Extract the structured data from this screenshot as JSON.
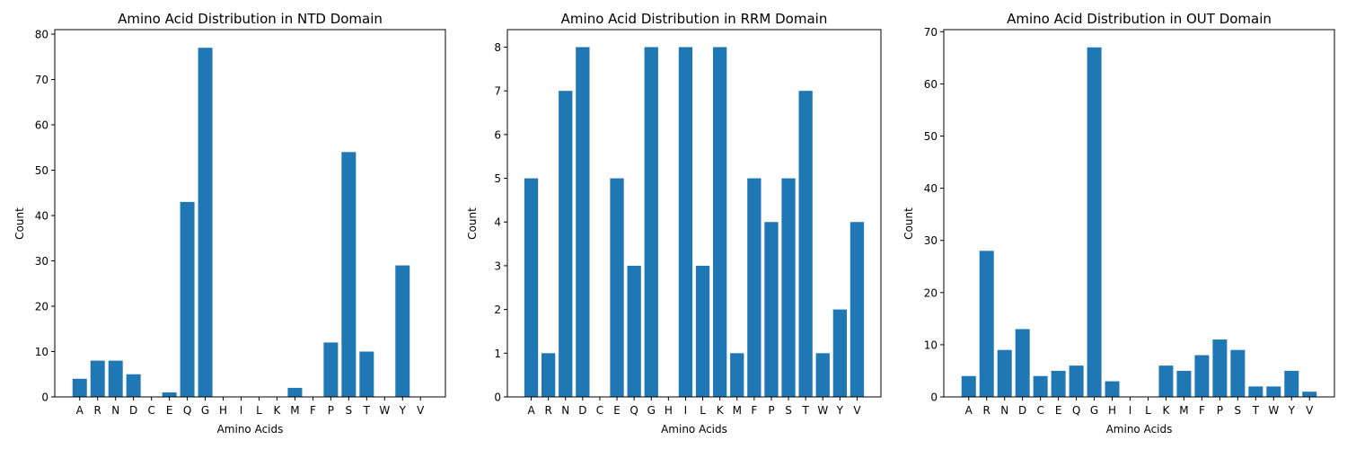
{
  "colors": {
    "bar": "#1f77b4",
    "axis": "#000000",
    "background": "#ffffff"
  },
  "chart_data": [
    {
      "type": "bar",
      "title": "Amino Acid Distribution in NTD Domain",
      "xlabel": "Amino Acids",
      "ylabel": "Count",
      "ylim": [
        0,
        81
      ],
      "yticks": [
        0,
        10,
        20,
        30,
        40,
        50,
        60,
        70,
        80
      ],
      "grid": false,
      "categories": [
        "A",
        "R",
        "N",
        "D",
        "C",
        "E",
        "Q",
        "G",
        "H",
        "I",
        "L",
        "K",
        "M",
        "F",
        "P",
        "S",
        "T",
        "W",
        "Y",
        "V"
      ],
      "values": [
        4,
        8,
        8,
        5,
        0,
        1,
        43,
        77,
        0,
        0,
        0,
        0,
        2,
        0,
        12,
        54,
        10,
        0,
        29,
        0
      ]
    },
    {
      "type": "bar",
      "title": "Amino Acid Distribution in RRM Domain",
      "xlabel": "Amino Acids",
      "ylabel": "Count",
      "ylim": [
        0,
        8.4
      ],
      "yticks": [
        0,
        1,
        2,
        3,
        4,
        5,
        6,
        7,
        8
      ],
      "grid": false,
      "categories": [
        "A",
        "R",
        "N",
        "D",
        "C",
        "E",
        "Q",
        "G",
        "H",
        "I",
        "L",
        "K",
        "M",
        "F",
        "P",
        "S",
        "T",
        "W",
        "Y",
        "V"
      ],
      "values": [
        5,
        1,
        7,
        8,
        0,
        5,
        3,
        8,
        0,
        8,
        3,
        8,
        1,
        5,
        4,
        5,
        7,
        1,
        2,
        4
      ]
    },
    {
      "type": "bar",
      "title": "Amino Acid Distribution in OUT Domain",
      "xlabel": "Amino Acids",
      "ylabel": "Count",
      "ylim": [
        0,
        70.4
      ],
      "yticks": [
        0,
        10,
        20,
        30,
        40,
        50,
        60,
        70
      ],
      "grid": false,
      "categories": [
        "A",
        "R",
        "N",
        "D",
        "C",
        "E",
        "Q",
        "G",
        "H",
        "I",
        "L",
        "K",
        "M",
        "F",
        "P",
        "S",
        "T",
        "W",
        "Y",
        "V"
      ],
      "values": [
        4,
        28,
        9,
        13,
        4,
        5,
        6,
        67,
        3,
        0,
        0,
        6,
        5,
        8,
        11,
        9,
        2,
        2,
        5,
        1
      ]
    }
  ]
}
